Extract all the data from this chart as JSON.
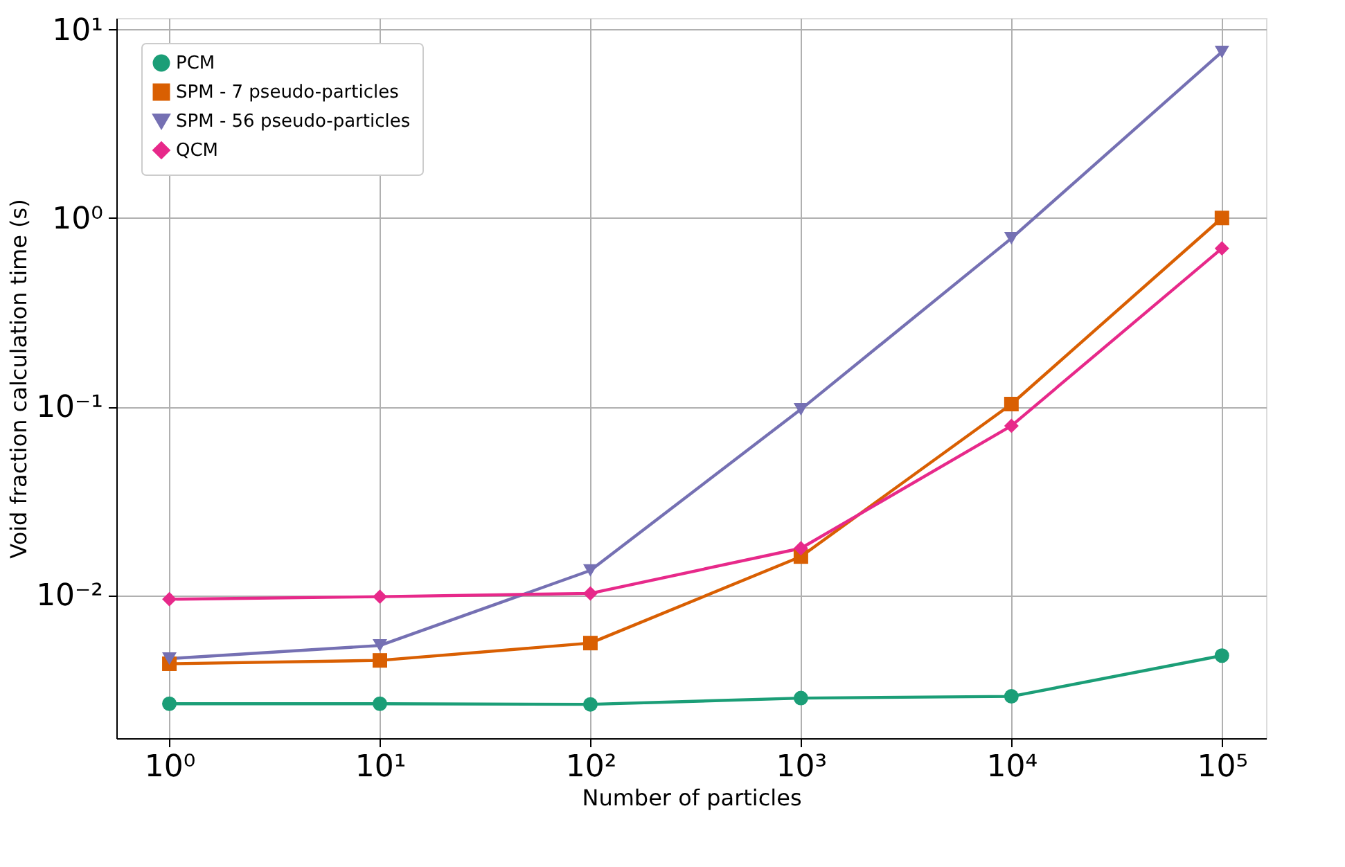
{
  "chart_data": {
    "type": "line",
    "xlabel": "Number of particles",
    "ylabel": "Void fraction calculation time (s)",
    "log": "xy",
    "grid": true,
    "legend": "top left",
    "line_style": "solid",
    "x": [
      1,
      10,
      100,
      1000,
      10000,
      100000
    ],
    "xlim": [
      0.56,
      162000
    ],
    "ylim": [
      0.00174,
      11.5
    ],
    "xticks": [
      {
        "value": 1,
        "label": "10⁰"
      },
      {
        "value": 10,
        "label": "10¹"
      },
      {
        "value": 100,
        "label": "10²"
      },
      {
        "value": 1000,
        "label": "10³"
      },
      {
        "value": 10000,
        "label": "10⁴"
      },
      {
        "value": 100000,
        "label": "10⁵"
      }
    ],
    "yticks": [
      {
        "value": 0.01,
        "label": "10⁻²"
      },
      {
        "value": 0.1,
        "label": "10⁻¹"
      },
      {
        "value": 1,
        "label": "10⁰"
      },
      {
        "value": 10,
        "label": "10¹"
      }
    ],
    "series": [
      {
        "name": "PCM",
        "color": "#1b9e77",
        "marker": "circle",
        "values": [
          0.00265,
          0.00265,
          0.00263,
          0.00284,
          0.0029,
          0.00477
        ]
      },
      {
        "name": "SPM - 7 pseudo-particles",
        "color": "#d95f02",
        "marker": "square",
        "values": [
          0.00432,
          0.0045,
          0.00556,
          0.016,
          0.103,
          1.0
        ]
      },
      {
        "name": "SPM - 56 pseudo-particles",
        "color": "#7570b3",
        "marker": "triangle",
        "values": [
          0.0046,
          0.0054,
          0.0135,
          0.0966,
          0.78,
          7.6
        ]
      },
      {
        "name": "QCM",
        "color": "#e7298a",
        "marker": "diamond",
        "values": [
          0.0095,
          0.0098,
          0.0102,
          0.0177,
          0.079,
          0.69
        ]
      }
    ]
  }
}
